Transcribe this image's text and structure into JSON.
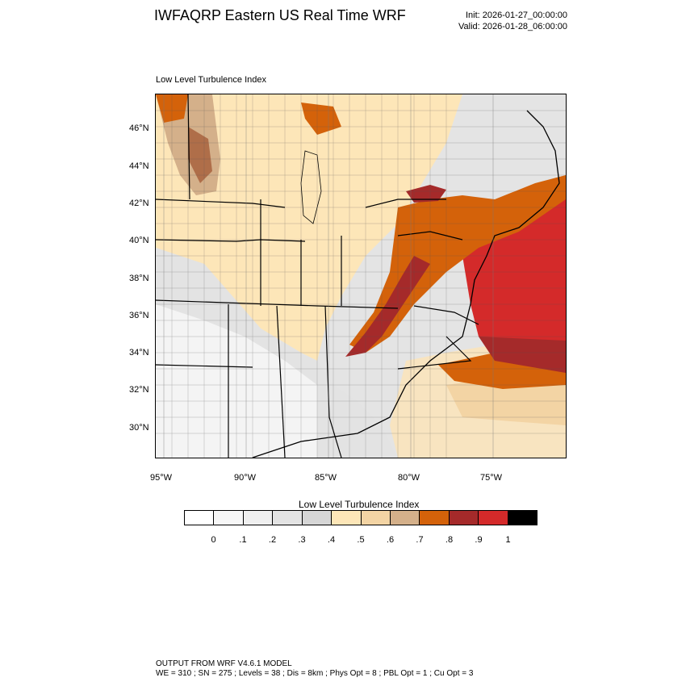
{
  "header": {
    "title": "IWFAQRP Eastern US Real Time WRF",
    "init": "Init: 2026-01-27_00:00:00",
    "valid": "Valid: 2026-01-28_06:00:00"
  },
  "map": {
    "subtitle": "Low Level Turbulence Index",
    "lat_labels": [
      "46°N",
      "44°N",
      "42°N",
      "40°N",
      "38°N",
      "36°N",
      "34°N",
      "32°N",
      "30°N"
    ],
    "lon_labels": [
      "95°W",
      "90°W",
      "85°W",
      "80°W",
      "75°W"
    ],
    "colors": {
      "land_low": "#f4f4f4",
      "land_mid": "#d9d9d9",
      "cream": "#fde6b8",
      "tan": "#f3d4a4",
      "brown": "#d4b08a",
      "orange": "#d4620a",
      "dark_red": "#a52a2a",
      "red": "#d42a2a",
      "lake": "#f8e0b8",
      "border": "#000000"
    }
  },
  "colorbar": {
    "title": "Low Level Turbulence Index",
    "labels": [
      "0",
      ".1",
      ".2",
      ".3",
      ".4",
      ".5",
      ".6",
      ".7",
      ".8",
      ".9",
      "1"
    ],
    "colors": [
      "#ffffff",
      "#f7f7f7",
      "#efefef",
      "#e3e3e3",
      "#d6d6d6",
      "#fde6b8",
      "#f3d4a4",
      "#d4b08a",
      "#d4620a",
      "#a52a2a",
      "#d42a2a",
      "#000000"
    ]
  },
  "footer": {
    "line1": "OUTPUT FROM WRF V4.6.1 MODEL",
    "line2": "WE = 310 ; SN = 275 ; Levels = 38 ; Dis = 8km ; Phys Opt = 8 ; PBL Opt = 1 ; Cu Opt = 3"
  }
}
